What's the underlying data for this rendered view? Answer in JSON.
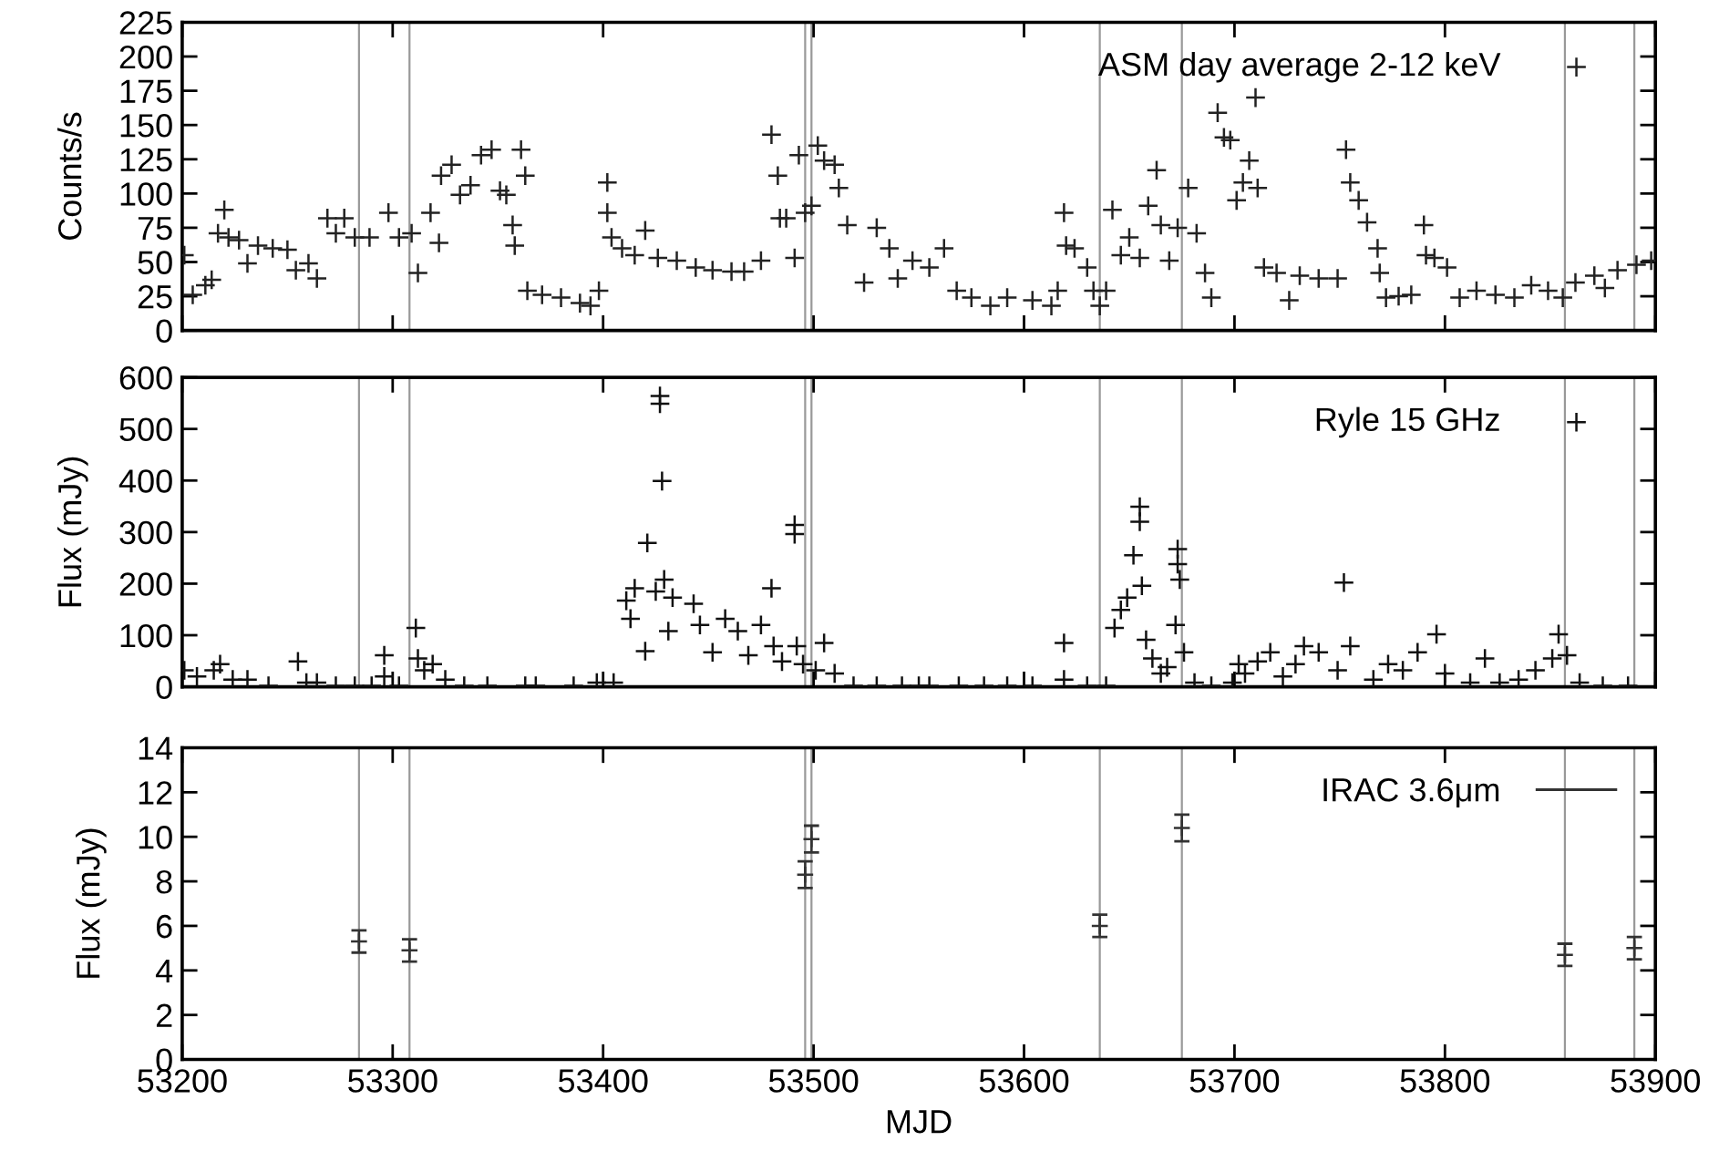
{
  "chart_data": [
    {
      "type": "scatter",
      "ylabel": "Counts/s",
      "xlim": [
        53200,
        53900
      ],
      "xticks": [
        53200,
        53300,
        53400,
        53500,
        53600,
        53700,
        53800,
        53900
      ],
      "ylim": [
        0,
        225
      ],
      "yticks": [
        0,
        25,
        50,
        75,
        100,
        125,
        150,
        175,
        200,
        225
      ],
      "tick_labels": "y",
      "legend": "top right",
      "marker": "cross",
      "grid": false,
      "series": [
        {
          "name": "ASM day average 2-12 keV",
          "color": "#222222",
          "x": [
            53201,
            53205,
            53211,
            53214,
            53217,
            53220,
            53222,
            53227,
            53231,
            53236,
            53243,
            53250,
            53254,
            53260,
            53264,
            53269,
            53273,
            53277,
            53282,
            53289,
            53298,
            53303,
            53309,
            53312,
            53318,
            53322,
            53323,
            53328,
            53332,
            53337,
            53342,
            53347,
            53351,
            53354,
            53357,
            53358,
            53361,
            53363,
            53364,
            53371,
            53380,
            53389,
            53394,
            53398,
            53402,
            53402,
            53404,
            53409,
            53415,
            53420,
            53426,
            53435,
            53444,
            53452,
            53461,
            53467,
            53475,
            53480,
            53483,
            53484,
            53487,
            53491,
            53493,
            53496,
            53499,
            53502,
            53505,
            53510,
            53512,
            53516,
            53524,
            53530,
            53536,
            53540,
            53547,
            53555,
            53562,
            53568,
            53575,
            53584,
            53592,
            53604,
            53613,
            53616,
            53619,
            53620,
            53624,
            53630,
            53633,
            53636,
            53639,
            53642,
            53646,
            53650,
            53655,
            53659,
            53663,
            53665,
            53669,
            53673,
            53678,
            53682,
            53686,
            53689,
            53692,
            53695,
            53698,
            53701,
            53704,
            53707,
            53710,
            53711,
            53714,
            53720,
            53726,
            53731,
            53740,
            53749,
            53753,
            53755,
            53759,
            53763,
            53768,
            53769,
            53772,
            53778,
            53784,
            53790,
            53791,
            53795,
            53801,
            53807,
            53815,
            53824,
            53833,
            53841,
            53849,
            53856,
            53862,
            53871,
            53876,
            53882,
            53891,
            53898
          ],
          "values": [
            55,
            26,
            33,
            37,
            71,
            88,
            68,
            66,
            49,
            62,
            60,
            59,
            44,
            49,
            38,
            82,
            71,
            82,
            68,
            68,
            86,
            68,
            71,
            42,
            86,
            64,
            113,
            121,
            99,
            106,
            128,
            132,
            102,
            99,
            77,
            62,
            132,
            113,
            29,
            26,
            24,
            20,
            18,
            29,
            108,
            86,
            68,
            60,
            55,
            73,
            53,
            51,
            46,
            44,
            43,
            43,
            51,
            143,
            113,
            82,
            82,
            53,
            128,
            86,
            91,
            135,
            124,
            121,
            104,
            77,
            35,
            75,
            60,
            38,
            51,
            46,
            60,
            29,
            24,
            18,
            24,
            22,
            18,
            29,
            86,
            62,
            60,
            46,
            29,
            18,
            29,
            88,
            55,
            68,
            53,
            91,
            117,
            77,
            51,
            75,
            104,
            71,
            42,
            24,
            159,
            141,
            139,
            95,
            108,
            124,
            170,
            104,
            46,
            42,
            22,
            40,
            38,
            38,
            132,
            108,
            95,
            79,
            60,
            42,
            24,
            25,
            26,
            77,
            55,
            53,
            46,
            24,
            29,
            26,
            24,
            33,
            29,
            24,
            35,
            40,
            31,
            44,
            48,
            51
          ]
        }
      ],
      "ref_lines": [
        {
          "axis": "x",
          "value": 53284,
          "color": "#999999"
        },
        {
          "axis": "x",
          "value": 53308,
          "color": "#999999"
        },
        {
          "axis": "x",
          "value": 53496,
          "color": "#999999"
        },
        {
          "axis": "x",
          "value": 53499,
          "color": "#999999"
        },
        {
          "axis": "x",
          "value": 53636,
          "color": "#999999"
        },
        {
          "axis": "x",
          "value": 53675,
          "color": "#999999"
        },
        {
          "axis": "x",
          "value": 53857,
          "color": "#999999"
        },
        {
          "axis": "x",
          "value": 53890,
          "color": "#999999"
        }
      ]
    },
    {
      "type": "scatter",
      "ylabel": "Flux (mJy)",
      "xlim": [
        53200,
        53900
      ],
      "xticks": [
        53200,
        53300,
        53400,
        53500,
        53600,
        53700,
        53800,
        53900
      ],
      "ylim": [
        0,
        600
      ],
      "yticks": [
        0,
        100,
        200,
        300,
        400,
        500,
        600
      ],
      "tick_labels": "y",
      "legend": "top right",
      "marker": "cross",
      "grid": false,
      "series": [
        {
          "name": "Ryle 15 GHz",
          "color": "#111111",
          "x": [
            53201,
            53207,
            53215,
            53218,
            53224,
            53231,
            53241,
            53255,
            53259,
            53264,
            53273,
            53282,
            53290,
            53296,
            53296,
            53303,
            53311,
            53312,
            53315,
            53319,
            53325,
            53334,
            53345,
            53363,
            53368,
            53386,
            53397,
            53405,
            53411,
            53413,
            53415,
            53420,
            53421,
            53425,
            53427,
            53427,
            53428,
            53429,
            53431,
            53433,
            53443,
            53446,
            53452,
            53458,
            53464,
            53469,
            53475,
            53480,
            53481,
            53485,
            53491,
            53491,
            53492,
            53495,
            53501,
            53505,
            53510,
            53519,
            53530,
            53542,
            53550,
            53555,
            53569,
            53581,
            53592,
            53604,
            53619,
            53619,
            53630,
            53639,
            53643,
            53646,
            53649,
            53652,
            53655,
            53655,
            53656,
            53658,
            53661,
            53665,
            53668,
            53672,
            53673,
            53673,
            53674,
            53676,
            53681,
            53689,
            53699,
            53702,
            53705,
            53711,
            53717,
            53723,
            53729,
            53733,
            53740,
            53749,
            53752,
            53755,
            53766,
            53773,
            53780,
            53787,
            53796,
            53800,
            53812,
            53819,
            53826,
            53835,
            53843,
            53851,
            53854,
            53858,
            53864,
            53875,
            53887
          ],
          "values": [
            32,
            20,
            32,
            44,
            14,
            14,
            2,
            49,
            8,
            8,
            2,
            2,
            2,
            61,
            20,
            2,
            114,
            55,
            32,
            44,
            14,
            2,
            2,
            2,
            2,
            2,
            8,
            8,
            167,
            132,
            191,
            69,
            279,
            185,
            564,
            549,
            399,
            208,
            108,
            173,
            161,
            120,
            67,
            132,
            108,
            61,
            120,
            191,
            79,
            49,
            314,
            296,
            79,
            44,
            32,
            85,
            26,
            2,
            2,
            2,
            2,
            2,
            2,
            2,
            2,
            2,
            85,
            14,
            2,
            2,
            114,
            149,
            173,
            255,
            320,
            349,
            196,
            91,
            55,
            26,
            38,
            120,
            267,
            238,
            208,
            67,
            8,
            2,
            8,
            44,
            26,
            49,
            67,
            20,
            44,
            79,
            67,
            32,
            202,
            79,
            14,
            44,
            32,
            67,
            102,
            26,
            8,
            55,
            8,
            14,
            32,
            55,
            102,
            61,
            8,
            2,
            2
          ]
        }
      ],
      "ref_lines": [
        {
          "axis": "x",
          "value": 53284,
          "color": "#999999"
        },
        {
          "axis": "x",
          "value": 53308,
          "color": "#999999"
        },
        {
          "axis": "x",
          "value": 53496,
          "color": "#999999"
        },
        {
          "axis": "x",
          "value": 53499,
          "color": "#999999"
        },
        {
          "axis": "x",
          "value": 53636,
          "color": "#999999"
        },
        {
          "axis": "x",
          "value": 53675,
          "color": "#999999"
        },
        {
          "axis": "x",
          "value": 53857,
          "color": "#999999"
        },
        {
          "axis": "x",
          "value": 53890,
          "color": "#999999"
        }
      ]
    },
    {
      "type": "scatter",
      "xlabel": "MJD",
      "ylabel": "Flux (mJy)",
      "xlim": [
        53200,
        53900
      ],
      "xticks": [
        53200,
        53300,
        53400,
        53500,
        53600,
        53700,
        53800,
        53900
      ],
      "ylim": [
        0,
        14
      ],
      "yticks": [
        0,
        2,
        4,
        6,
        8,
        10,
        12,
        14
      ],
      "legend": "top right",
      "marker": "cross",
      "grid": false,
      "series": [
        {
          "name": "IRAC 3.6μm",
          "color": "#333333",
          "x": [
            53284,
            53308,
            53496,
            53499,
            53636,
            53675,
            53857,
            53890
          ],
          "values": [
            5.3,
            4.9,
            8.3,
            9.9,
            6.0,
            10.4,
            4.7,
            5.0
          ],
          "errors": [
            0.5,
            0.5,
            0.6,
            0.6,
            0.5,
            0.6,
            0.5,
            0.5
          ]
        }
      ],
      "ref_lines": [
        {
          "axis": "x",
          "value": 53284,
          "color": "#999999"
        },
        {
          "axis": "x",
          "value": 53308,
          "color": "#999999"
        },
        {
          "axis": "x",
          "value": 53496,
          "color": "#999999"
        },
        {
          "axis": "x",
          "value": 53499,
          "color": "#999999"
        },
        {
          "axis": "x",
          "value": 53636,
          "color": "#999999"
        },
        {
          "axis": "x",
          "value": 53675,
          "color": "#999999"
        },
        {
          "axis": "x",
          "value": 53857,
          "color": "#999999"
        },
        {
          "axis": "x",
          "value": 53890,
          "color": "#999999"
        }
      ]
    }
  ]
}
